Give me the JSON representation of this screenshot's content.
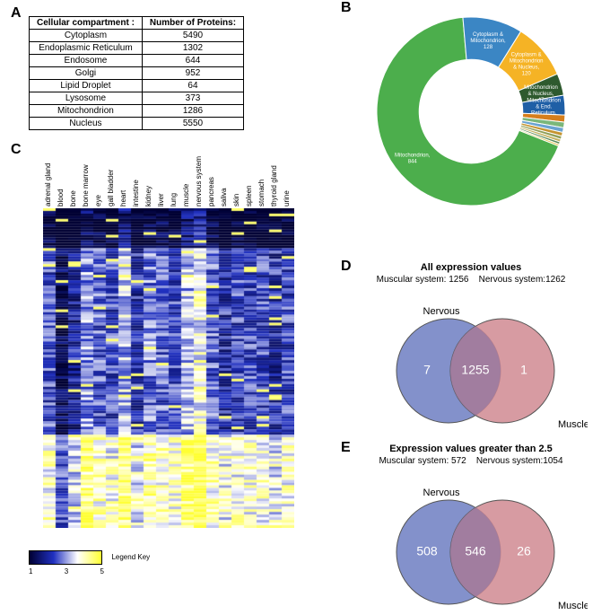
{
  "labels": {
    "A": "A",
    "B": "B",
    "C": "C",
    "D": "D",
    "E": "E"
  },
  "tableA": {
    "header_left": "Cellular compartment :",
    "header_right": "Number of Proteins:",
    "rows": [
      [
        "Cytoplasm",
        "5490"
      ],
      [
        "Endoplasmic Reticulum",
        "1302"
      ],
      [
        "Endosome",
        "644"
      ],
      [
        "Golgi",
        "952"
      ],
      [
        "Lipid Droplet",
        "64"
      ],
      [
        "Lysosome",
        "373"
      ],
      [
        "Mitochondrion",
        "1286"
      ],
      [
        "Nucleus",
        "5550"
      ]
    ]
  },
  "donut": {
    "type": "donut",
    "inner_ratio": 0.55,
    "background": "#ffffff",
    "slices": [
      {
        "label": "Mitochondrion, 844",
        "value": 844,
        "color": "#4cae4c",
        "label_color": "#ffffff",
        "label_inside": true
      },
      {
        "label": "Cytoplasm & Mitochondrion, 128",
        "value": 128,
        "color": "#3b86c4",
        "label_color": "#ffffff",
        "label_inside": true
      },
      {
        "label": "Cytoplasm & Mitochondrion & Nucleus, 120",
        "value": 120,
        "color": "#f5b325",
        "label_color": "#ffffff",
        "label_inside": true
      },
      {
        "label": "Mitochondrion & Nucleus, 47",
        "value": 47,
        "color": "#2e5a2e",
        "label_color": "#ffffff",
        "label_inside": true
      },
      {
        "label": "Mitochondrion & End. Reticulum, 42",
        "value": 42,
        "color": "#1f5fa6",
        "label_color": "#ffffff",
        "label_inside": true
      },
      {
        "label": "",
        "value": 15,
        "color": "#d57e1c",
        "label_inside": false
      },
      {
        "label": "",
        "value": 12,
        "color": "#7ab77a",
        "label_inside": false
      },
      {
        "label": "",
        "value": 10,
        "color": "#6aa3d1",
        "label_inside": false
      },
      {
        "label": "",
        "value": 8,
        "color": "#c59430",
        "label_inside": false
      },
      {
        "label": "",
        "value": 7,
        "color": "#8fa05a",
        "label_inside": false
      },
      {
        "label": "",
        "value": 6,
        "color": "#c4b15e",
        "label_inside": false
      },
      {
        "label": "",
        "value": 5,
        "color": "#5a8a5a",
        "label_inside": false
      },
      {
        "label": "",
        "value": 4,
        "color": "#e0c75e",
        "label_inside": false
      }
    ],
    "label_fontsize": 6
  },
  "heatmap": {
    "type": "heatmap",
    "col_labels": [
      "adrenal gland",
      "blood",
      "bone",
      "bone marrow",
      "eye",
      "gall bladder",
      "heart",
      "intestine",
      "kidney",
      "liver",
      "lung",
      "muscle",
      "nervous system",
      "pancreas",
      "saliva",
      "skin",
      "spleen",
      "stomach",
      "thyroid gland",
      "urine"
    ],
    "label_fontsize": 8,
    "n_rows": 120,
    "gradient_stops": [
      {
        "t": 0.0,
        "color": "#000033"
      },
      {
        "t": 0.33,
        "color": "#2030c0"
      },
      {
        "t": 0.66,
        "color": "#ffffff"
      },
      {
        "t": 1.0,
        "color": "#ffff33"
      }
    ],
    "vmin": 1,
    "vmax": 5,
    "legend_title": "Legend Key",
    "legend_ticks": [
      "1",
      "3",
      "5"
    ]
  },
  "vennD": {
    "title": "All expression values",
    "sub_left": "Muscular system: 1256",
    "sub_right": "Nervous system:1262",
    "left_label": "Nervous",
    "right_label": "Muscle",
    "left_only": "7",
    "overlap": "1255",
    "right_only": "1",
    "left_color": "#6d7ec2",
    "right_color": "#d08a92",
    "overlap_color": "#9b7aa0",
    "opacity": 0.85,
    "text_color": "#ffffff",
    "stroke": "#555555"
  },
  "vennE": {
    "title": "Expression values greater than 2.5",
    "sub_left": "Muscular system: 572",
    "sub_right": "Nervous system:1054",
    "left_label": "Nervous",
    "right_label": "Muscle",
    "left_only": "508",
    "overlap": "546",
    "right_only": "26",
    "left_color": "#6d7ec2",
    "right_color": "#d08a92",
    "overlap_color": "#9b7aa0",
    "opacity": 0.85,
    "text_color": "#ffffff",
    "stroke": "#555555"
  }
}
